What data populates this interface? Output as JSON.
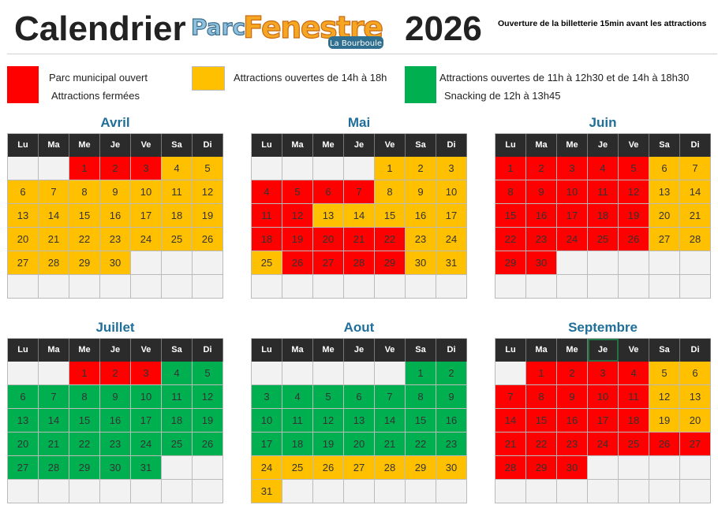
{
  "header": {
    "title": "Calendrier",
    "year": "2026",
    "note": "Ouverture de la billetterie 15min avant les attractions",
    "logo": {
      "parc": "Parc",
      "fenestre": "Fenestre",
      "sub": "La Bourboule"
    }
  },
  "colors": {
    "R": "#ff0000",
    "Y": "#ffc000",
    "G": "#00b050",
    "empty": "#f2f2f2"
  },
  "legend": [
    {
      "code": "R",
      "lines": [
        "Parc municipal ouvert",
        "Attractions fermées"
      ]
    },
    {
      "code": "Y",
      "lines": [
        "Attractions ouvertes de 14h à 18h"
      ]
    },
    {
      "code": "G",
      "lines": [
        "Attractions ouvertes de 11h à 12h30 et de 14h à 18h30",
        "Snacking de 12h à 13h45"
      ]
    }
  ],
  "weekdays": [
    "Lu",
    "Ma",
    "Me",
    "Je",
    "Ve",
    "Sa",
    "Di"
  ],
  "months": [
    {
      "name": "Avril",
      "offset": 2,
      "days": "RRRYYYYYYYYYYYYYYYYYYYYYYYYYYY"
    },
    {
      "name": "Mai",
      "offset": 4,
      "days": "YYYRRRRYYYRRYYYYYRRRRRYYYRRRRYY"
    },
    {
      "name": "Juin",
      "offset": 0,
      "days": "RRRRRYYRRRRRYYRRRRRYYRRRRRYYRR"
    },
    {
      "name": "Juillet",
      "offset": 2,
      "days": "RRRGGGGGGGGGGGGGGGGGGGGGGGGGGGG"
    },
    {
      "name": "Aout",
      "offset": 5,
      "days": "GGGGGGGGGGGGGGGGGGGGGGGYYYYYYYY"
    },
    {
      "name": "Septembre",
      "offset": 1,
      "days": "RRRRYYRRRRRYYRRRRRYYRRRRRRRRRR"
    }
  ]
}
